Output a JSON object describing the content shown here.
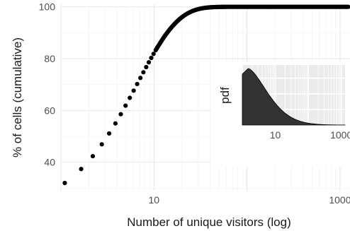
{
  "chart_data": [
    {
      "type": "scatter",
      "xlabel": "Number of unique visitors (log)",
      "ylabel": "% of cells (cumulative)",
      "x_scale": "log10",
      "xlim": [
        1.0,
        1280
      ],
      "ylim": [
        29,
        101
      ],
      "x_ticks": [
        10,
        1000
      ],
      "x_tick_labels": [
        "10",
        "1000"
      ],
      "y_ticks": [
        40,
        60,
        80,
        100
      ],
      "y_tick_labels": [
        "40",
        "60",
        "80",
        "100"
      ],
      "grid": true,
      "marker_color": "#000000",
      "curve": {
        "x_min": 1.1,
        "x_max": 1240,
        "y_at_min": 32,
        "y_limit": 100,
        "k": 0.15
      }
    },
    {
      "type": "area",
      "ylabel": "pdf",
      "x_scale": "log10",
      "xlim": [
        1.0,
        1300
      ],
      "x_ticks": [
        10,
        1000
      ],
      "x_tick_labels": [
        "10",
        "1000"
      ],
      "grid": true,
      "fill_color": "#333333",
      "background": "#ebebeb"
    }
  ]
}
